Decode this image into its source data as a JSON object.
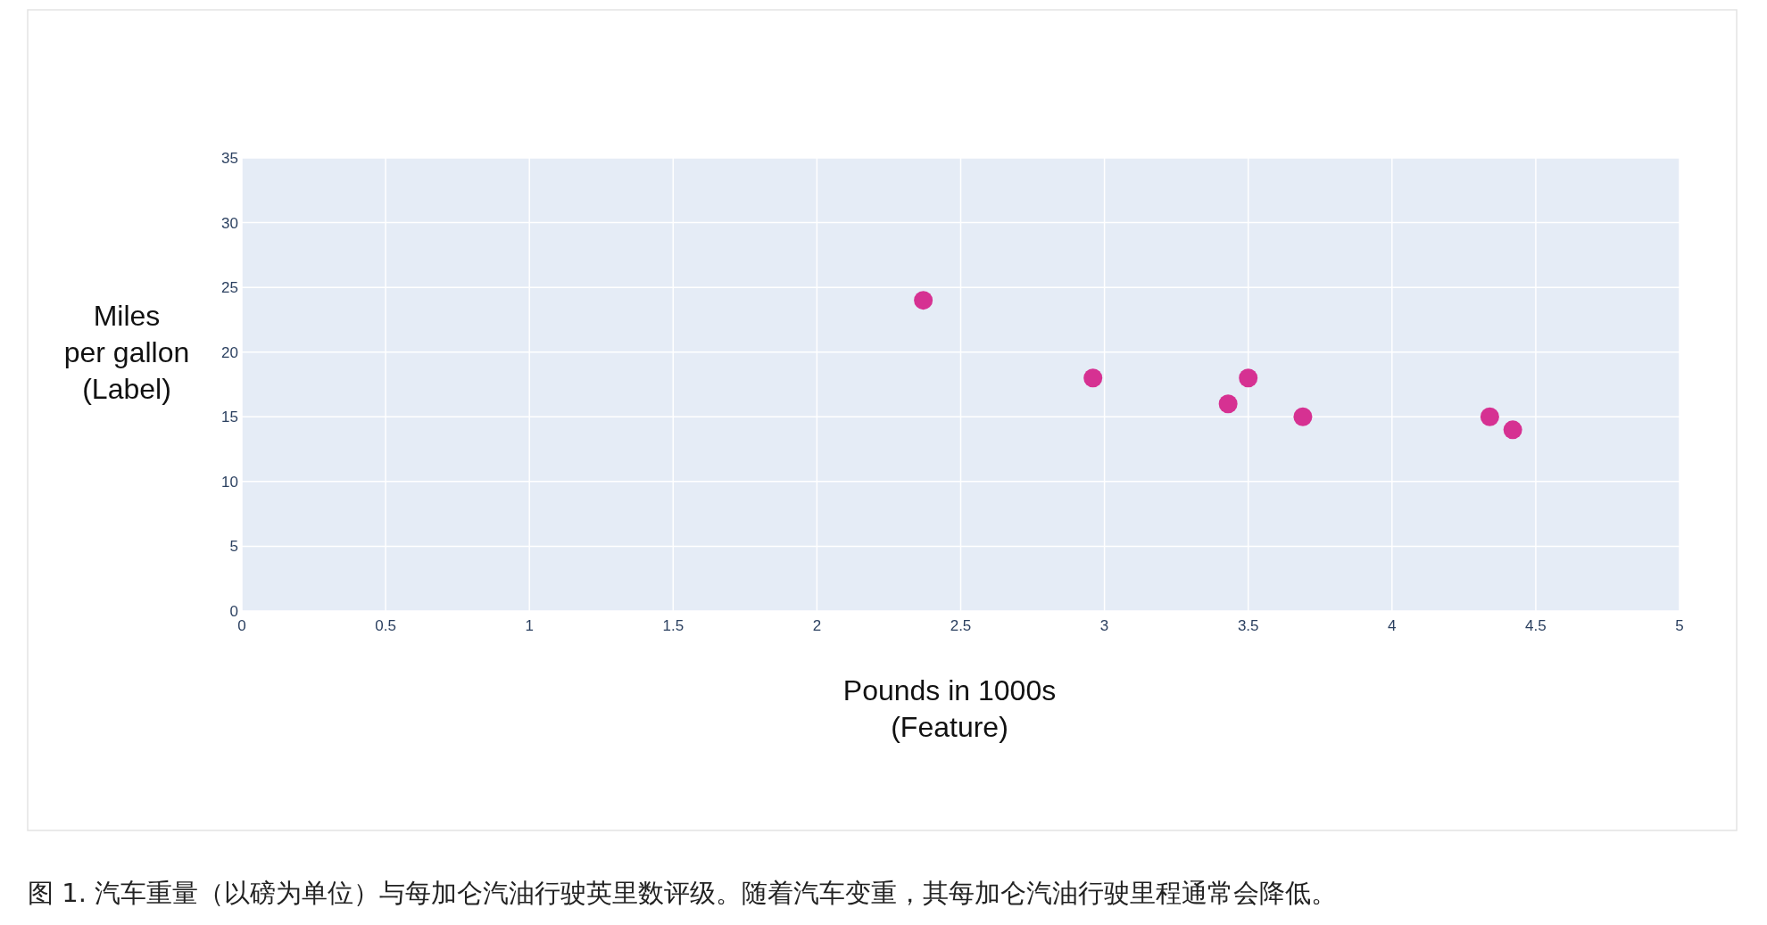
{
  "chart_data": {
    "type": "scatter",
    "xlabel": "Pounds in 1000s\n(Feature)",
    "ylabel": "Miles\nper gallon\n(Label)",
    "x": [
      2.37,
      2.96,
      3.43,
      3.5,
      3.69,
      4.34,
      4.42
    ],
    "series": [
      {
        "color": "#d63192",
        "values": [
          24,
          18,
          16,
          18,
          15,
          15,
          14
        ]
      }
    ],
    "xlim": [
      0,
      5
    ],
    "xticks": [
      0,
      0.5,
      1,
      1.5,
      2,
      2.5,
      3,
      3.5,
      4,
      4.5,
      5
    ],
    "ylim": [
      0,
      35
    ],
    "yticks": [
      0,
      5,
      10,
      15,
      20,
      25,
      30,
      35
    ],
    "grid": true,
    "marker": "circle",
    "annotations": [
      "图 1. 汽车重量（以磅为单位）与每加仑汽油行驶英里数评级。随着汽车变重，其每加仑汽油行驶里程通常会降低。"
    ]
  }
}
